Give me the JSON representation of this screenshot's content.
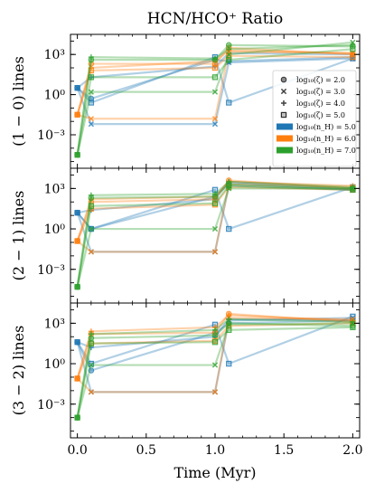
{
  "chart_data": {
    "type": "line",
    "title": "HCN/HCO⁺ Ratio",
    "xlabel": "Time (Myr)",
    "x_ticks": [
      "0.0",
      "0.5",
      "1.0",
      "1.5",
      "2.0"
    ],
    "xlim": [
      -0.05,
      2.05
    ],
    "y_scale": "log",
    "ylim_log10": [
      -5.5,
      4.5
    ],
    "y_ticks": [
      "10³",
      "10⁰",
      "10⁻³"
    ],
    "y_tick_values_log10": [
      3,
      0,
      -3
    ],
    "colors": {
      "log10_nH_5": "#1f77b4",
      "log10_nH_6": "#ff7f0e",
      "log10_nH_7": "#2ca02c"
    },
    "legend": {
      "placement": "right",
      "markers": [
        {
          "label": "log₁₀(ζ) = 2.0",
          "marker": "circle"
        },
        {
          "label": "log₁₀(ζ) = 3.0",
          "marker": "x"
        },
        {
          "label": "log₁₀(ζ) = 4.0",
          "marker": "plus"
        },
        {
          "label": "log₁₀(ζ) = 5.0",
          "marker": "square"
        }
      ],
      "colors": [
        {
          "label": "log₁₀(n_H) = 5.0",
          "color": "#1f77b4"
        },
        {
          "label": "log₁₀(n_H) = 6.0",
          "color": "#ff7f0e"
        },
        {
          "label": "log₁₀(n_H) = 7.0",
          "color": "#2ca02c"
        }
      ]
    },
    "x": [
      0,
      0.1,
      1.0,
      1.1,
      2.0
    ],
    "panels": [
      {
        "ylabel": "(1 − 0) lines",
        "show_legend": true,
        "series": [
          {
            "color": "#1f77b4",
            "marker": "circle",
            "log10_y": [
              0.5,
              -0.3,
              2.6,
              2.5,
              2.8
            ]
          },
          {
            "color": "#1f77b4",
            "marker": "x",
            "log10_y": [
              0.5,
              -2.2,
              -2.2,
              2.4,
              2.7
            ]
          },
          {
            "color": "#1f77b4",
            "marker": "plus",
            "log10_y": [
              0.5,
              1.3,
              2.1,
              3.1,
              3.0
            ]
          },
          {
            "color": "#1f77b4",
            "marker": "square",
            "log10_y": [
              0.5,
              -0.6,
              2.8,
              -0.6,
              2.7
            ]
          },
          {
            "color": "#ff7f0e",
            "marker": "circle",
            "log10_y": [
              -1.5,
              2.3,
              2.3,
              3.5,
              3.0
            ]
          },
          {
            "color": "#ff7f0e",
            "marker": "x",
            "log10_y": [
              -1.5,
              -1.8,
              -1.8,
              3.2,
              3.1
            ]
          },
          {
            "color": "#ff7f0e",
            "marker": "plus",
            "log10_y": [
              -1.5,
              2.0,
              2.5,
              3.3,
              3.1
            ]
          },
          {
            "color": "#ff7f0e",
            "marker": "square",
            "log10_y": [
              -1.5,
              1.8,
              2.0,
              2.9,
              2.8
            ]
          },
          {
            "color": "#2ca02c",
            "marker": "circle",
            "log10_y": [
              -4.5,
              2.6,
              2.6,
              3.7,
              3.6
            ]
          },
          {
            "color": "#2ca02c",
            "marker": "x",
            "log10_y": [
              -4.5,
              0.2,
              0.2,
              3.0,
              3.9
            ]
          },
          {
            "color": "#2ca02c",
            "marker": "plus",
            "log10_y": [
              -4.5,
              2.8,
              2.7,
              3.4,
              3.7
            ]
          },
          {
            "color": "#2ca02c",
            "marker": "square",
            "log10_y": [
              -4.5,
              1.3,
              1.3,
              2.6,
              3.4
            ]
          }
        ]
      },
      {
        "ylabel": "(2 − 1) lines",
        "show_legend": false,
        "series": [
          {
            "color": "#1f77b4",
            "marker": "circle",
            "log10_y": [
              1.2,
              0.0,
              2.4,
              3.4,
              2.9
            ]
          },
          {
            "color": "#1f77b4",
            "marker": "x",
            "log10_y": [
              1.2,
              -1.7,
              -1.7,
              3.2,
              2.9
            ]
          },
          {
            "color": "#1f77b4",
            "marker": "plus",
            "log10_y": [
              1.2,
              1.4,
              2.2,
              3.5,
              3.0
            ]
          },
          {
            "color": "#1f77b4",
            "marker": "square",
            "log10_y": [
              1.2,
              0.0,
              2.9,
              0.0,
              3.1
            ]
          },
          {
            "color": "#ff7f0e",
            "marker": "circle",
            "log10_y": [
              -0.9,
              2.0,
              2.2,
              3.6,
              3.0
            ]
          },
          {
            "color": "#ff7f0e",
            "marker": "x",
            "log10_y": [
              -0.9,
              -1.7,
              -1.7,
              3.3,
              3.1
            ]
          },
          {
            "color": "#ff7f0e",
            "marker": "plus",
            "log10_y": [
              -0.9,
              2.2,
              2.4,
              3.5,
              3.2
            ]
          },
          {
            "color": "#ff7f0e",
            "marker": "square",
            "log10_y": [
              -0.9,
              1.5,
              1.8,
              3.1,
              2.9
            ]
          },
          {
            "color": "#2ca02c",
            "marker": "circle",
            "log10_y": [
              -4.3,
              2.3,
              2.4,
              3.3,
              3.0
            ]
          },
          {
            "color": "#2ca02c",
            "marker": "x",
            "log10_y": [
              -4.3,
              0.0,
              0.0,
              3.0,
              3.0
            ]
          },
          {
            "color": "#2ca02c",
            "marker": "plus",
            "log10_y": [
              -4.3,
              2.5,
              2.6,
              3.5,
              3.1
            ]
          },
          {
            "color": "#2ca02c",
            "marker": "square",
            "log10_y": [
              -4.3,
              1.7,
              1.9,
              3.2,
              2.9
            ]
          }
        ]
      },
      {
        "ylabel": "(3 − 2) lines",
        "show_legend": false,
        "series": [
          {
            "color": "#1f77b4",
            "marker": "circle",
            "log10_y": [
              1.6,
              -0.5,
              2.3,
              3.0,
              3.2
            ]
          },
          {
            "color": "#1f77b4",
            "marker": "x",
            "log10_y": [
              1.6,
              -2.1,
              -2.1,
              3.2,
              3.4
            ]
          },
          {
            "color": "#1f77b4",
            "marker": "plus",
            "log10_y": [
              1.6,
              1.2,
              2.0,
              3.3,
              3.2
            ]
          },
          {
            "color": "#1f77b4",
            "marker": "square",
            "log10_y": [
              1.6,
              0.0,
              2.9,
              0.0,
              3.5
            ]
          },
          {
            "color": "#ff7f0e",
            "marker": "circle",
            "log10_y": [
              -1.1,
              2.2,
              2.3,
              3.7,
              3.1
            ]
          },
          {
            "color": "#ff7f0e",
            "marker": "x",
            "log10_y": [
              -1.1,
              -2.1,
              -2.1,
              3.4,
              3.3
            ]
          },
          {
            "color": "#ff7f0e",
            "marker": "plus",
            "log10_y": [
              -1.1,
              2.4,
              2.7,
              3.6,
              3.2
            ]
          },
          {
            "color": "#ff7f0e",
            "marker": "square",
            "log10_y": [
              -1.1,
              1.5,
              1.7,
              2.8,
              3.0
            ]
          },
          {
            "color": "#2ca02c",
            "marker": "circle",
            "log10_y": [
              -4.0,
              1.9,
              2.1,
              3.0,
              2.8
            ]
          },
          {
            "color": "#2ca02c",
            "marker": "x",
            "log10_y": [
              -4.0,
              -0.1,
              -0.1,
              2.9,
              3.0
            ]
          },
          {
            "color": "#2ca02c",
            "marker": "plus",
            "log10_y": [
              -4.0,
              2.2,
              2.5,
              3.3,
              3.1
            ]
          },
          {
            "color": "#2ca02c",
            "marker": "square",
            "log10_y": [
              -4.0,
              1.5,
              1.6,
              2.5,
              2.7
            ]
          }
        ]
      }
    ]
  }
}
